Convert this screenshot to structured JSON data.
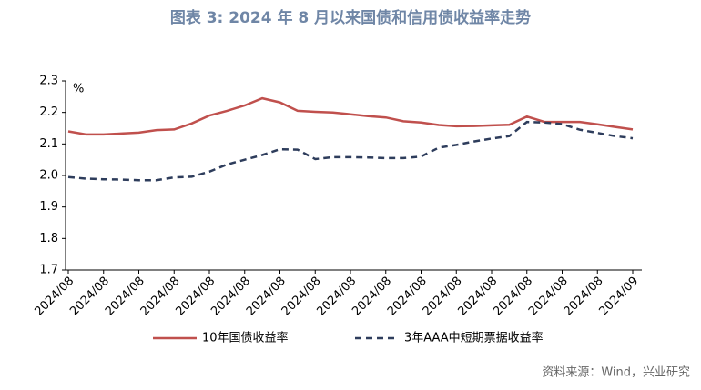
{
  "chart_data": {
    "type": "line",
    "title": "图表 3:  2024 年 8 月以来国债和信用债收益率走势",
    "y_label": "%",
    "source": "资料来源：Wind，兴业研究",
    "categories": [
      "2024/08",
      null,
      "2024/08",
      null,
      "2024/08",
      null,
      "2024/08",
      null,
      "2024/08",
      null,
      "2024/08",
      null,
      "2024/08",
      null,
      "2024/08",
      null,
      "2024/08",
      null,
      "2024/08",
      null,
      "2024/08",
      null,
      "2024/08",
      null,
      "2024/08",
      null,
      "2024/08",
      null,
      "2024/08",
      null,
      "2024/08",
      null,
      "2024/09"
    ],
    "series": [
      {
        "name": "10年国债收益率",
        "color": "#c0504d",
        "dash": false,
        "values": [
          2.14,
          2.13,
          2.13,
          2.133,
          2.136,
          2.144,
          2.146,
          2.165,
          2.19,
          2.205,
          2.222,
          2.245,
          2.232,
          2.205,
          2.202,
          2.2,
          2.194,
          2.188,
          2.184,
          2.172,
          2.168,
          2.16,
          2.156,
          2.157,
          2.159,
          2.161,
          2.187,
          2.17,
          2.17,
          2.17,
          2.162,
          2.154,
          2.146
        ]
      },
      {
        "name": "3年AAA中短期票据收益率",
        "color": "#2e3d5c",
        "dash": true,
        "values": [
          1.995,
          1.99,
          1.988,
          1.987,
          1.985,
          1.985,
          1.994,
          1.996,
          2.012,
          2.035,
          2.05,
          2.065,
          2.083,
          2.082,
          2.052,
          2.058,
          2.058,
          2.057,
          2.055,
          2.055,
          2.06,
          2.088,
          2.097,
          2.108,
          2.117,
          2.125,
          2.17,
          2.168,
          2.163,
          2.145,
          2.135,
          2.125,
          2.118
        ]
      }
    ],
    "ylim": [
      1.7,
      2.3
    ],
    "yticks": [
      1.7,
      1.8,
      1.9,
      {
        "value": 2.0,
        "label": "2.0"
      },
      2.1,
      2.2,
      2.3
    ],
    "grid": false,
    "legend": "bottom"
  }
}
